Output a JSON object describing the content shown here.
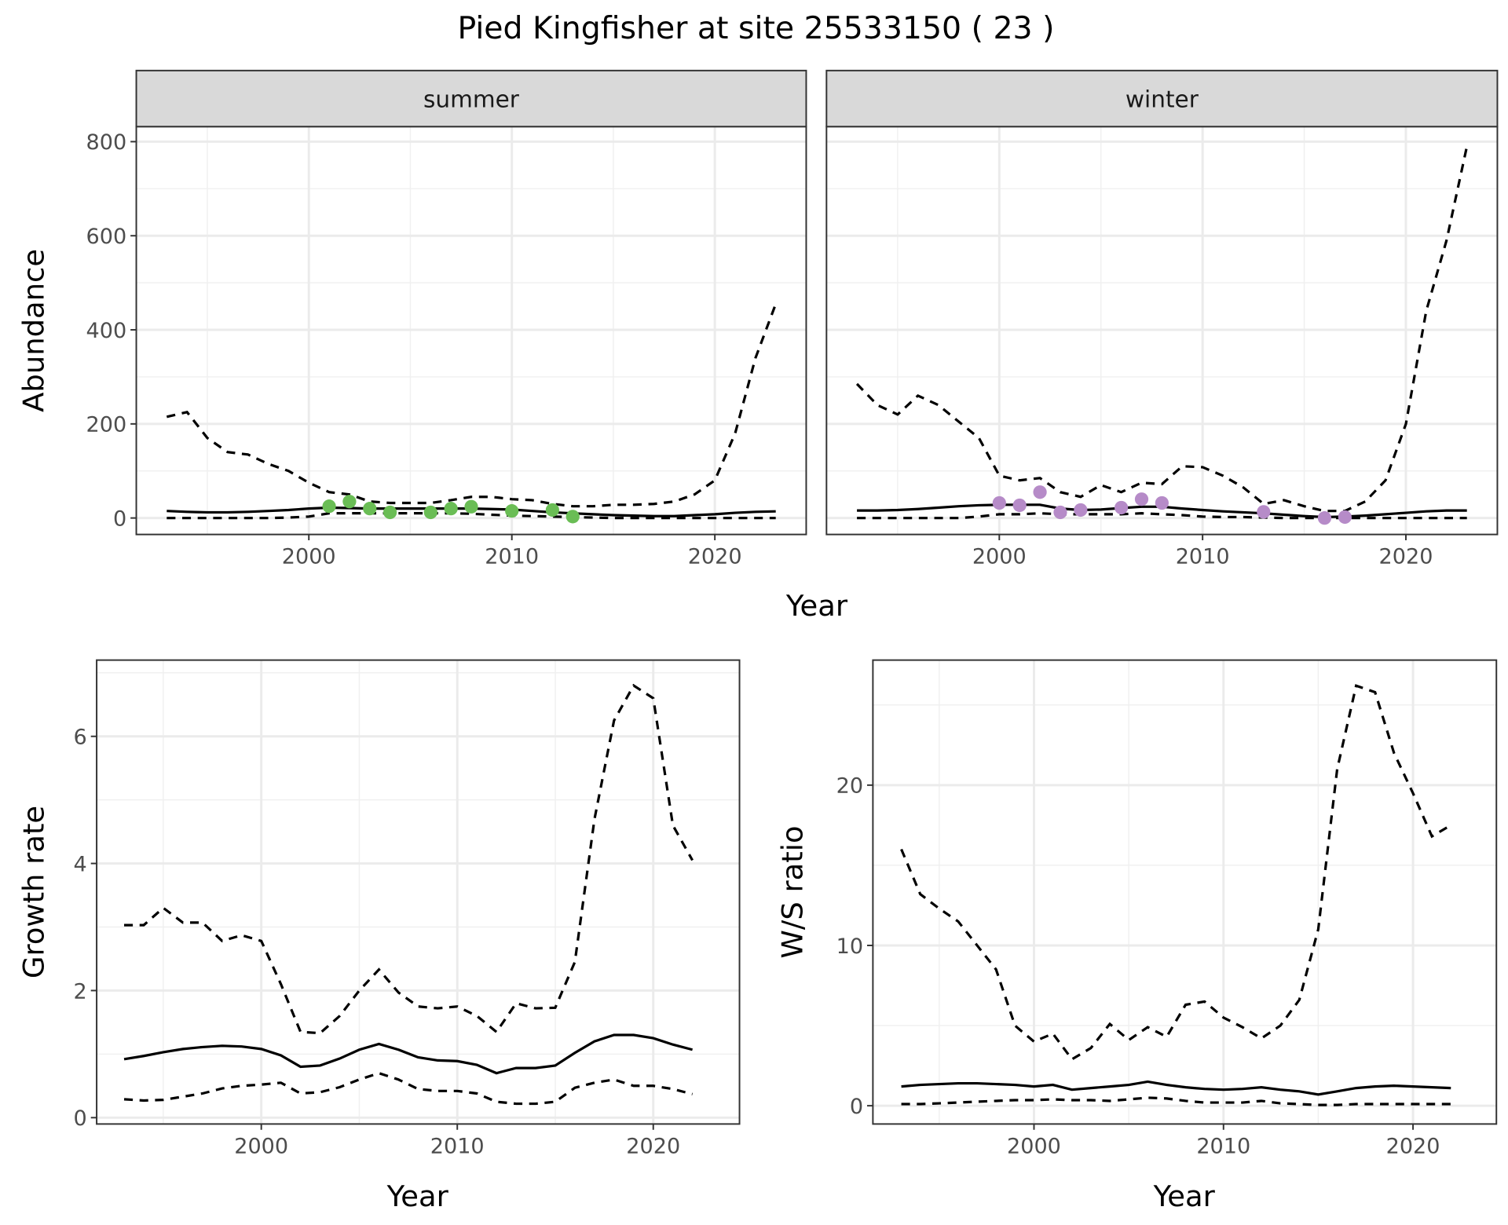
{
  "title": "Pied Kingfisher at site 25533150 ( 23 )",
  "colors": {
    "summer_points": "#6abd55",
    "winter_points": "#b68bc8",
    "lines": "#000000",
    "strip_bg": "#d9d9d9"
  },
  "chart_data": [
    {
      "id": "abundance",
      "type": "line",
      "ylabel": "Abundance",
      "xlabel": "Year",
      "grid": true,
      "xlim": [
        1991.5,
        2024.5
      ],
      "ylim": [
        -35,
        832
      ],
      "xticks": [
        2000,
        2010,
        2020
      ],
      "yticks": [
        0,
        200,
        400,
        600,
        800
      ],
      "facets": [
        {
          "label": "summer",
          "x": [
            1993,
            1994,
            1995,
            1996,
            1997,
            1998,
            1999,
            2000,
            2001,
            2002,
            2003,
            2004,
            2005,
            2006,
            2007,
            2008,
            2009,
            2010,
            2011,
            2012,
            2013,
            2014,
            2015,
            2016,
            2017,
            2018,
            2019,
            2020,
            2021,
            2022,
            2023
          ],
          "upper": [
            215,
            225,
            170,
            140,
            135,
            115,
            100,
            75,
            55,
            50,
            35,
            32,
            32,
            32,
            38,
            45,
            45,
            40,
            38,
            30,
            25,
            25,
            28,
            28,
            30,
            35,
            50,
            80,
            180,
            340,
            455
          ],
          "mean": [
            15,
            13,
            12,
            12,
            13,
            15,
            17,
            20,
            22,
            21,
            20,
            20,
            20,
            20,
            20,
            20,
            19,
            18,
            15,
            12,
            10,
            8,
            6,
            5,
            4,
            4,
            6,
            8,
            11,
            13,
            14
          ],
          "lower": [
            0,
            0,
            0,
            0,
            0,
            0,
            1,
            3,
            10,
            10,
            10,
            10,
            10,
            10,
            10,
            9,
            7,
            5,
            4,
            3,
            2,
            1,
            0,
            0,
            0,
            0,
            0,
            0,
            0,
            0,
            0
          ],
          "points": {
            "x": [
              2001,
              2002,
              2003,
              2004,
              2006,
              2007,
              2008,
              2010,
              2012,
              2013
            ],
            "y": [
              25,
              35,
              20,
              12,
              12,
              20,
              24,
              15,
              17,
              3
            ]
          }
        },
        {
          "label": "winter",
          "x": [
            1993,
            1994,
            1995,
            1996,
            1997,
            1998,
            1999,
            2000,
            2001,
            2002,
            2003,
            2004,
            2005,
            2006,
            2007,
            2008,
            2009,
            2010,
            2011,
            2012,
            2013,
            2014,
            2015,
            2016,
            2017,
            2018,
            2019,
            2020,
            2021,
            2022,
            2023
          ],
          "upper": [
            285,
            240,
            220,
            260,
            240,
            205,
            170,
            90,
            80,
            85,
            55,
            45,
            70,
            55,
            75,
            72,
            110,
            108,
            90,
            65,
            30,
            38,
            25,
            15,
            15,
            35,
            80,
            200,
            440,
            590,
            790
          ],
          "mean": [
            16,
            16,
            17,
            19,
            22,
            25,
            27,
            28,
            28,
            28,
            20,
            17,
            18,
            21,
            24,
            24,
            20,
            17,
            14,
            12,
            10,
            7,
            4,
            2,
            3,
            5,
            8,
            11,
            14,
            16,
            16
          ],
          "lower": [
            0,
            0,
            0,
            0,
            0,
            0,
            3,
            8,
            8,
            10,
            8,
            8,
            8,
            8,
            10,
            8,
            6,
            3,
            2,
            2,
            1,
            0,
            0,
            0,
            0,
            0,
            0,
            0,
            0,
            0,
            0
          ],
          "points": {
            "x": [
              2000,
              2001,
              2002,
              2003,
              2004,
              2006,
              2007,
              2008,
              2013,
              2016,
              2017
            ],
            "y": [
              32,
              27,
              55,
              12,
              17,
              22,
              40,
              32,
              13,
              0,
              2
            ]
          }
        }
      ]
    },
    {
      "id": "growth",
      "type": "line",
      "ylabel": "Growth rate",
      "xlabel": "Year",
      "grid": true,
      "xlim": [
        1991.6,
        2024.4
      ],
      "ylim": [
        -0.1,
        7.2
      ],
      "xticks": [
        2000,
        2010,
        2020
      ],
      "yticks": [
        0,
        2,
        4,
        6
      ],
      "x": [
        1993,
        1994,
        1995,
        1996,
        1997,
        1998,
        1999,
        2000,
        2001,
        2002,
        2003,
        2004,
        2005,
        2006,
        2007,
        2008,
        2009,
        2010,
        2011,
        2012,
        2013,
        2014,
        2015,
        2016,
        2017,
        2018,
        2019,
        2020,
        2021,
        2022
      ],
      "upper": [
        3.03,
        3.03,
        3.3,
        3.07,
        3.07,
        2.78,
        2.87,
        2.78,
        2.1,
        1.35,
        1.33,
        1.6,
        2.0,
        2.33,
        1.97,
        1.75,
        1.72,
        1.75,
        1.6,
        1.35,
        1.8,
        1.72,
        1.73,
        2.45,
        4.7,
        6.25,
        6.8,
        6.6,
        4.6,
        4.05
      ],
      "mean": [
        0.92,
        0.97,
        1.03,
        1.08,
        1.11,
        1.13,
        1.12,
        1.08,
        0.98,
        0.8,
        0.82,
        0.93,
        1.07,
        1.16,
        1.07,
        0.95,
        0.9,
        0.89,
        0.83,
        0.7,
        0.78,
        0.78,
        0.82,
        1.02,
        1.2,
        1.3,
        1.3,
        1.25,
        1.15,
        1.07
      ],
      "lower": [
        0.29,
        0.27,
        0.28,
        0.33,
        0.38,
        0.46,
        0.5,
        0.52,
        0.55,
        0.38,
        0.4,
        0.48,
        0.6,
        0.7,
        0.6,
        0.45,
        0.42,
        0.42,
        0.38,
        0.25,
        0.22,
        0.22,
        0.25,
        0.47,
        0.55,
        0.6,
        0.5,
        0.5,
        0.45,
        0.37
      ]
    },
    {
      "id": "ws_ratio",
      "type": "line",
      "ylabel": "W/S ratio",
      "xlabel": "Year",
      "grid": true,
      "xlim": [
        1991.5,
        2024.4
      ],
      "ylim": [
        -1.14,
        27.8
      ],
      "xticks": [
        2000,
        2010,
        2020
      ],
      "yticks": [
        0,
        10,
        20
      ],
      "x": [
        1993,
        1994,
        1995,
        1996,
        1997,
        1998,
        1999,
        2000,
        2001,
        2002,
        2003,
        2004,
        2005,
        2006,
        2007,
        2008,
        2009,
        2010,
        2011,
        2012,
        2013,
        2014,
        2015,
        2016,
        2017,
        2018,
        2019,
        2020,
        2021,
        2022
      ],
      "upper": [
        16,
        13.2,
        12.3,
        11.5,
        10,
        8.5,
        5,
        4,
        4.5,
        2.9,
        3.6,
        5.1,
        4.1,
        4.9,
        4.3,
        6.3,
        6.5,
        5.5,
        4.9,
        4.2,
        5,
        6.6,
        11,
        21,
        26.2,
        25.8,
        22,
        19.5,
        16.8,
        17.5
      ],
      "mean": [
        1.2,
        1.3,
        1.35,
        1.4,
        1.4,
        1.35,
        1.3,
        1.2,
        1.3,
        1.0,
        1.1,
        1.2,
        1.3,
        1.5,
        1.3,
        1.15,
        1.05,
        1.0,
        1.05,
        1.15,
        1.0,
        0.9,
        0.7,
        0.9,
        1.1,
        1.2,
        1.25,
        1.2,
        1.15,
        1.1
      ],
      "lower": [
        0.1,
        0.1,
        0.15,
        0.2,
        0.25,
        0.3,
        0.35,
        0.35,
        0.4,
        0.35,
        0.35,
        0.3,
        0.4,
        0.5,
        0.45,
        0.3,
        0.2,
        0.2,
        0.2,
        0.3,
        0.15,
        0.1,
        0.05,
        0.05,
        0.1,
        0.1,
        0.1,
        0.1,
        0.1,
        0.1
      ]
    }
  ]
}
